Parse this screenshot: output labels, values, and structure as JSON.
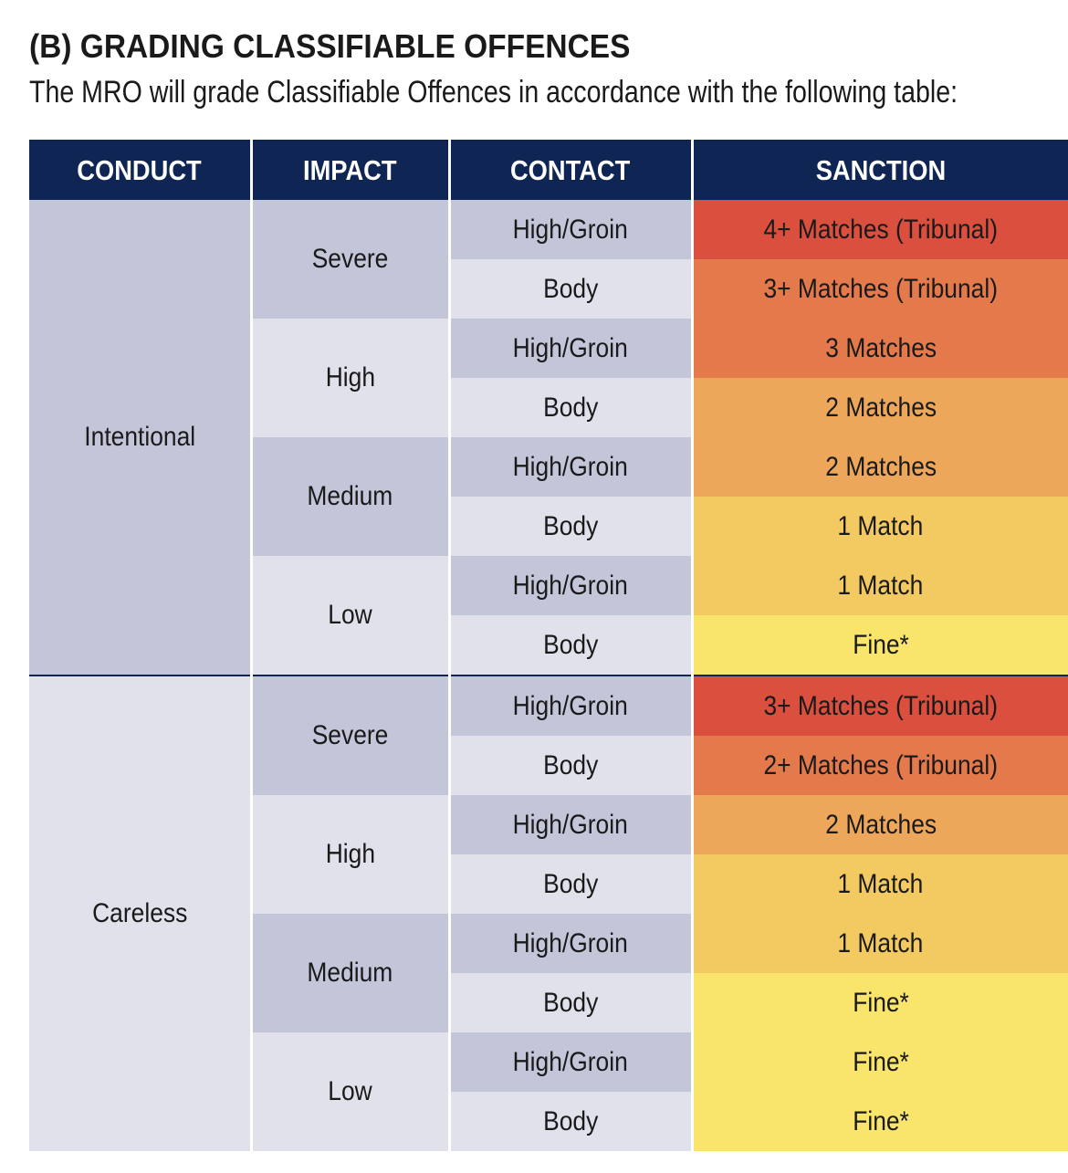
{
  "heading": "(B)  GRADING CLASSIFIABLE OFFENCES",
  "intro": "The MRO will grade Classifiable Offences in accordance with the following table:",
  "table": {
    "headers": [
      "CONDUCT",
      "IMPACT",
      "CONTACT",
      "SANCTION"
    ],
    "sanction_colors": {
      "red": "#db4f3f",
      "dark_orange": "#e47a4b",
      "orange": "#eda75b",
      "light_orange": "#f3c962",
      "yellow": "#f9e46c"
    },
    "conduct_groups": [
      {
        "conduct": "Intentional",
        "impacts": [
          {
            "impact": "Severe",
            "rows": [
              {
                "contact": "High/Groin",
                "sanction": "4+ Matches (Tribunal)",
                "level": "red"
              },
              {
                "contact": "Body",
                "sanction": "3+ Matches (Tribunal)",
                "level": "dark_orange"
              }
            ]
          },
          {
            "impact": "High",
            "rows": [
              {
                "contact": "High/Groin",
                "sanction": "3 Matches",
                "level": "dark_orange"
              },
              {
                "contact": "Body",
                "sanction": "2 Matches",
                "level": "orange"
              }
            ]
          },
          {
            "impact": "Medium",
            "rows": [
              {
                "contact": "High/Groin",
                "sanction": "2 Matches",
                "level": "orange"
              },
              {
                "contact": "Body",
                "sanction": "1 Match",
                "level": "light_orange"
              }
            ]
          },
          {
            "impact": "Low",
            "rows": [
              {
                "contact": "High/Groin",
                "sanction": "1 Match",
                "level": "light_orange"
              },
              {
                "contact": "Body",
                "sanction": "Fine*",
                "level": "yellow"
              }
            ]
          }
        ]
      },
      {
        "conduct": "Careless",
        "impacts": [
          {
            "impact": "Severe",
            "rows": [
              {
                "contact": "High/Groin",
                "sanction": "3+ Matches (Tribunal)",
                "level": "red"
              },
              {
                "contact": "Body",
                "sanction": "2+ Matches (Tribunal)",
                "level": "dark_orange"
              }
            ]
          },
          {
            "impact": "High",
            "rows": [
              {
                "contact": "High/Groin",
                "sanction": "2 Matches",
                "level": "orange"
              },
              {
                "contact": "Body",
                "sanction": "1 Match",
                "level": "light_orange"
              }
            ]
          },
          {
            "impact": "Medium",
            "rows": [
              {
                "contact": "High/Groin",
                "sanction": "1 Match",
                "level": "light_orange"
              },
              {
                "contact": "Body",
                "sanction": "Fine*",
                "level": "yellow"
              }
            ]
          },
          {
            "impact": "Low",
            "rows": [
              {
                "contact": "High/Groin",
                "sanction": "Fine*",
                "level": "yellow"
              },
              {
                "contact": "Body",
                "sanction": "Fine*",
                "level": "yellow"
              }
            ]
          }
        ]
      }
    ]
  }
}
